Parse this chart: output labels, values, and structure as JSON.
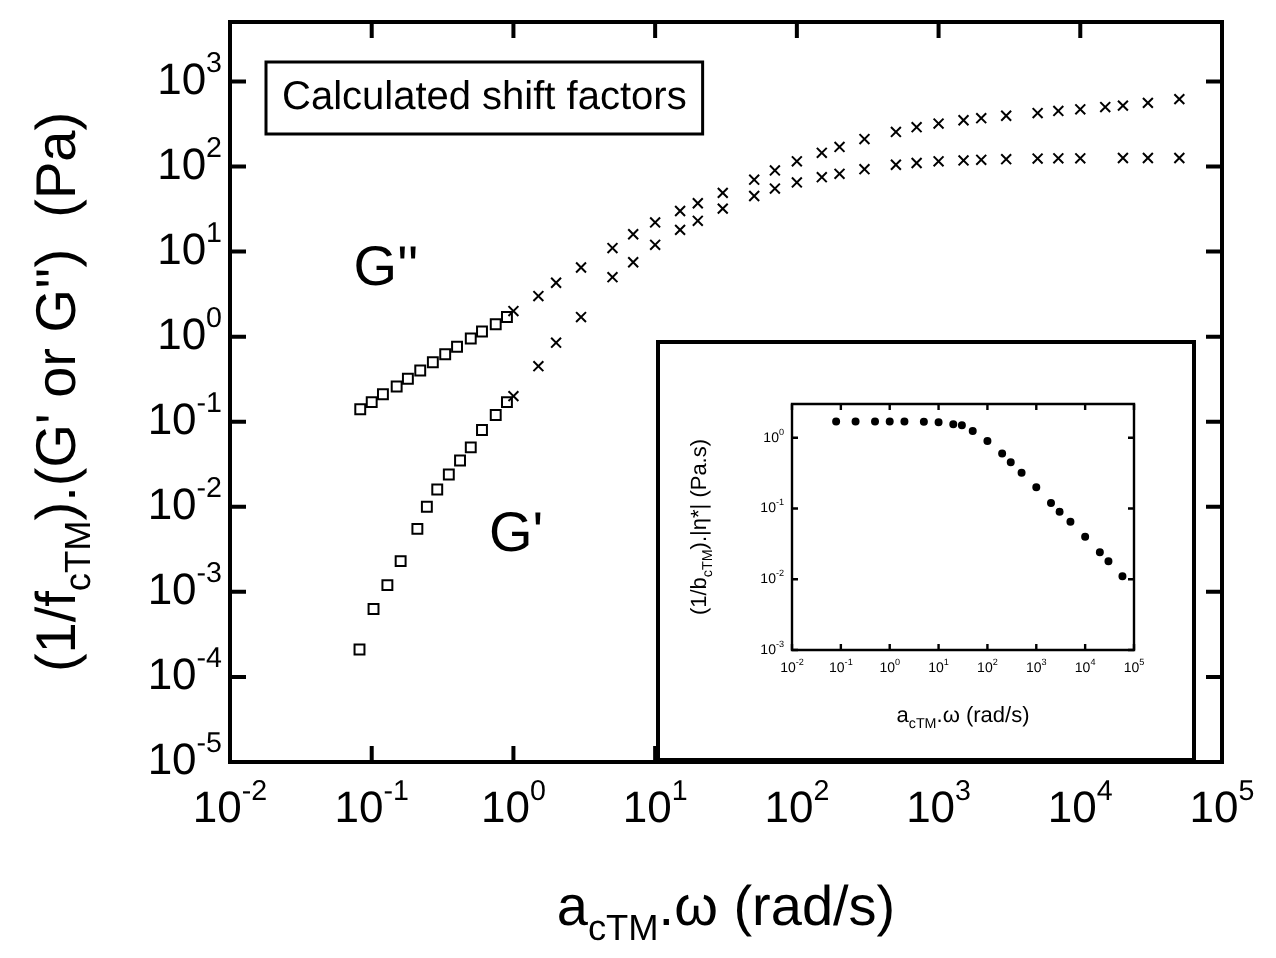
{
  "chart_data": [
    {
      "type": "scatter",
      "xlabel": "a$_{cTM}$.ω (rad/s)",
      "ylabel": "(1/f$_{cTM}$).(G' or G'')  (Pa)",
      "log": "xy",
      "xlim": [
        0.01,
        100000
      ],
      "ylim": [
        1e-05,
        5000
      ],
      "xticks": [
        {
          "value": 0.01,
          "label": "10$^{-2}$"
        },
        {
          "value": 0.1,
          "label": "10$^{-1}$"
        },
        {
          "value": 1,
          "label": "10$^{0}$"
        },
        {
          "value": 10,
          "label": "10$^{1}$"
        },
        {
          "value": 100,
          "label": "10$^{2}$"
        },
        {
          "value": 1000,
          "label": "10$^{3}$"
        },
        {
          "value": 10000,
          "label": "10$^{4}$"
        },
        {
          "value": 100000,
          "label": "10$^{5}$"
        }
      ],
      "yticks": [
        {
          "value": 1e-05,
          "label": "10$^{-5}$"
        },
        {
          "value": 0.0001,
          "label": "10$^{-4}$"
        },
        {
          "value": 0.001,
          "label": "10$^{-3}$"
        },
        {
          "value": 0.01,
          "label": "10$^{-2}$"
        },
        {
          "value": 0.1,
          "label": "10$^{-1}$"
        },
        {
          "value": 1,
          "label": "10$^{0}$"
        },
        {
          "value": 10,
          "label": "10$^{1}$"
        },
        {
          "value": 100,
          "label": "10$^{2}$"
        },
        {
          "value": 1000,
          "label": "10$^{3}$"
        }
      ],
      "annotations": [
        "Calculated shift factors",
        "G''",
        "G'"
      ],
      "series": [
        {
          "color": "#000000",
          "marker": "square",
          "x": [
            0.083,
            0.1,
            0.12,
            0.15,
            0.18,
            0.22,
            0.27,
            0.33,
            0.4,
            0.5,
            0.6,
            0.75,
            0.9
          ],
          "values": [
            0.14,
            0.17,
            0.21,
            0.26,
            0.32,
            0.4,
            0.5,
            0.62,
            0.76,
            0.95,
            1.15,
            1.4,
            1.7
          ]
        },
        {
          "color": "#000000",
          "marker": "cross",
          "x": [
            1,
            1.5,
            2,
            3,
            5,
            7,
            10,
            15,
            20,
            30,
            50,
            70,
            100,
            150,
            200,
            300,
            500,
            700,
            1000,
            1500,
            2000,
            3000,
            5000,
            7000,
            10000,
            15000,
            20000,
            30000,
            50000
          ],
          "values": [
            2,
            3,
            4.3,
            6.5,
            11,
            16,
            22,
            30,
            37,
            49,
            70,
            90,
            115,
            145,
            170,
            210,
            255,
            290,
            320,
            350,
            370,
            395,
            425,
            450,
            470,
            500,
            520,
            560,
            620
          ]
        },
        {
          "color": "#000000",
          "marker": "square",
          "x": [
            0.082,
            0.103,
            0.129,
            0.16,
            0.21,
            0.245,
            0.29,
            0.35,
            0.42,
            0.5,
            0.6,
            0.75,
            0.9
          ],
          "values": [
            0.00021,
            0.00063,
            0.0012,
            0.0023,
            0.0055,
            0.01,
            0.016,
            0.024,
            0.035,
            0.05,
            0.08,
            0.12,
            0.17
          ]
        },
        {
          "color": "#000000",
          "marker": "cross",
          "x": [
            1,
            1.5,
            2,
            3,
            5,
            7,
            10,
            15,
            20,
            30,
            50,
            70,
            100,
            150,
            200,
            300,
            500,
            700,
            1000,
            1500,
            2000,
            3000,
            5000,
            7000,
            10000,
            20000,
            30000,
            50000
          ],
          "values": [
            0.2,
            0.45,
            0.85,
            1.7,
            5,
            7.5,
            12,
            18,
            23,
            32,
            45,
            55,
            65,
            75,
            82,
            93,
            105,
            110,
            115,
            118,
            120,
            122,
            124,
            125,
            125,
            126,
            126,
            126
          ]
        }
      ]
    },
    {
      "type": "scatter",
      "xlabel": "a$_{cTM}$.ω (rad/s)",
      "ylabel": "(1/b$_{cTM}$).|η*| (Pa.s)",
      "log": "xy",
      "xlim": [
        0.01,
        100000
      ],
      "ylim": [
        0.001,
        3
      ],
      "xticks": [
        {
          "value": 0.01,
          "label": "10$^{-2}$"
        },
        {
          "value": 0.1,
          "label": "10$^{-1}$"
        },
        {
          "value": 1,
          "label": "10$^{0}$"
        },
        {
          "value": 10,
          "label": "10$^{1}$"
        },
        {
          "value": 100,
          "label": "10$^{2}$"
        },
        {
          "value": 1000,
          "label": "10$^{3}$"
        },
        {
          "value": 10000,
          "label": "10$^{4}$"
        },
        {
          "value": 100000,
          "label": "10$^{5}$"
        }
      ],
      "yticks": [
        {
          "value": 0.001,
          "label": "10$^{-3}$"
        },
        {
          "value": 0.01,
          "label": "10$^{-2}$"
        },
        {
          "value": 0.1,
          "label": "10$^{-1}$"
        },
        {
          "value": 1,
          "label": "10$^{0}$"
        }
      ],
      "series": [
        {
          "color": "#000000",
          "marker": "circle",
          "x": [
            0.08,
            0.2,
            0.5,
            1,
            2,
            5,
            10,
            20,
            30,
            50,
            100,
            200,
            300,
            500,
            1000,
            2000,
            3000,
            5000,
            10000,
            20000,
            30000,
            58000
          ],
          "values": [
            1.7,
            1.7,
            1.7,
            1.7,
            1.7,
            1.68,
            1.65,
            1.55,
            1.5,
            1.25,
            0.9,
            0.6,
            0.45,
            0.32,
            0.2,
            0.12,
            0.09,
            0.065,
            0.04,
            0.024,
            0.018,
            0.011
          ]
        }
      ]
    }
  ]
}
